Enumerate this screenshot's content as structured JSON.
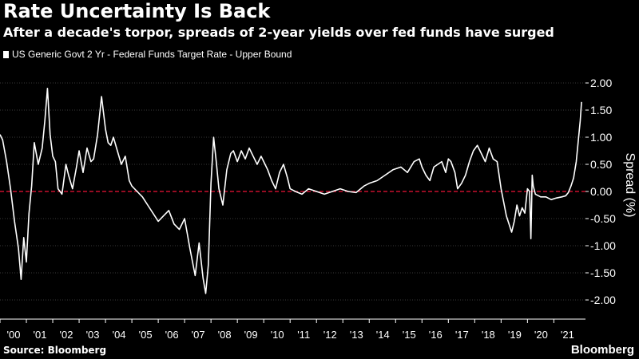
{
  "header": {
    "title": "Rate Uncertainty Is Back",
    "subtitle": "After a decade's torpor, spreads of 2-year yields over fed funds have surged"
  },
  "footer": {
    "source": "Source: Bloomberg",
    "logo": "Bloomberg"
  },
  "colors": {
    "background": "#000000",
    "line": "#ffffff",
    "zero_line": "#c8102e",
    "grid": "#3a3a3a"
  },
  "chart_data": {
    "type": "line",
    "title": "Rate Uncertainty Is Back",
    "subtitle": "After a decade's torpor, spreads of 2-year yields over fed funds have surged",
    "ylabel": "Spread (%)",
    "xlabel": "",
    "ylim": [
      -2.0,
      2.0
    ],
    "yticks": [
      "2.00",
      "1.50",
      "1.00",
      "0.50",
      "0.00",
      "-0.50",
      "-1.00",
      "-1.50",
      "-2.00"
    ],
    "ytick_values": [
      2.0,
      1.5,
      1.0,
      0.5,
      0.0,
      -0.5,
      -1.0,
      -1.5,
      -2.0
    ],
    "xlim": [
      2000.0,
      2022.2
    ],
    "xtick_labels": [
      "'00",
      "'01",
      "'02",
      "'03",
      "'04",
      "'05",
      "'06",
      "'07",
      "'08",
      "'09",
      "'10",
      "'11",
      "'12",
      "'13",
      "'14",
      "'15",
      "'16",
      "'17",
      "'18",
      "'19",
      "'20",
      "'21"
    ],
    "xtick_values": [
      2000,
      2001,
      2002,
      2003,
      2004,
      2005,
      2006,
      2007,
      2008,
      2009,
      2010,
      2011,
      2012,
      2013,
      2014,
      2015,
      2016,
      2017,
      2018,
      2019,
      2020,
      2021
    ],
    "grid": "horizontal-dotted",
    "axis_position": "right",
    "legend_position": "top-left",
    "reference_line": {
      "y": 0,
      "style": "dashed",
      "color": "#c8102e"
    },
    "series": [
      {
        "name": "US Generic Govt 2 Yr - Federal Funds Target Rate - Upper Bound",
        "x": [
          2000.0,
          2000.1,
          2000.25,
          2000.4,
          2000.55,
          2000.7,
          2000.8,
          2000.9,
          2001.0,
          2001.1,
          2001.2,
          2001.3,
          2001.45,
          2001.6,
          2001.7,
          2001.8,
          2001.9,
          2002.0,
          2002.1,
          2002.2,
          2002.35,
          2002.5,
          2002.6,
          2002.75,
          2002.9,
          2003.0,
          2003.15,
          2003.3,
          2003.45,
          2003.55,
          2003.7,
          2003.85,
          2004.0,
          2004.1,
          2004.2,
          2004.3,
          2004.45,
          2004.6,
          2004.75,
          2004.9,
          2005.0,
          2005.2,
          2005.4,
          2005.6,
          2005.8,
          2006.0,
          2006.2,
          2006.4,
          2006.6,
          2006.8,
          2007.0,
          2007.2,
          2007.4,
          2007.55,
          2007.7,
          2007.8,
          2007.9,
          2008.0,
          2008.1,
          2008.2,
          2008.3,
          2008.45,
          2008.6,
          2008.75,
          2008.85,
          2009.0,
          2009.15,
          2009.3,
          2009.45,
          2009.6,
          2009.75,
          2009.9,
          2010.0,
          2010.15,
          2010.3,
          2010.45,
          2010.6,
          2010.75,
          2010.9,
          2011.0,
          2011.2,
          2011.45,
          2011.7,
          2012.0,
          2012.3,
          2012.6,
          2012.9,
          2013.2,
          2013.5,
          2013.8,
          2014.0,
          2014.3,
          2014.6,
          2014.9,
          2015.2,
          2015.45,
          2015.7,
          2015.9,
          2016.0,
          2016.15,
          2016.3,
          2016.45,
          2016.6,
          2016.75,
          2016.9,
          2017.0,
          2017.1,
          2017.25,
          2017.35,
          2017.5,
          2017.65,
          2017.8,
          2017.95,
          2018.1,
          2018.25,
          2018.4,
          2018.55,
          2018.7,
          2018.85,
          2019.0,
          2019.1,
          2019.2,
          2019.3,
          2019.4,
          2019.5,
          2019.6,
          2019.7,
          2019.8,
          2019.9,
          2020.0,
          2020.08,
          2020.13,
          2020.18,
          2020.22,
          2020.3,
          2020.5,
          2020.7,
          2020.9,
          2021.1,
          2021.3,
          2021.45,
          2021.55,
          2021.65,
          2021.75,
          2021.85,
          2021.92,
          2022.0,
          2022.05
        ],
        "values": [
          1.05,
          0.95,
          0.55,
          0.05,
          -0.55,
          -1.05,
          -1.62,
          -0.85,
          -1.3,
          -0.4,
          0.1,
          0.9,
          0.5,
          0.8,
          1.3,
          1.9,
          1.05,
          0.65,
          0.55,
          0.05,
          -0.05,
          0.5,
          0.3,
          0.05,
          0.45,
          0.75,
          0.35,
          0.8,
          0.55,
          0.6,
          1.05,
          1.75,
          1.15,
          0.9,
          0.85,
          1.0,
          0.75,
          0.5,
          0.65,
          0.2,
          0.1,
          0.0,
          -0.1,
          -0.25,
          -0.4,
          -0.55,
          -0.45,
          -0.35,
          -0.6,
          -0.7,
          -0.5,
          -1.05,
          -1.55,
          -0.95,
          -1.6,
          -1.88,
          -1.35,
          0.15,
          1.0,
          0.55,
          0.05,
          -0.25,
          0.4,
          0.7,
          0.75,
          0.55,
          0.75,
          0.6,
          0.8,
          0.65,
          0.5,
          0.65,
          0.55,
          0.4,
          0.2,
          0.05,
          0.35,
          0.5,
          0.25,
          0.05,
          0.0,
          -0.05,
          0.05,
          0.0,
          -0.05,
          0.0,
          0.05,
          0.0,
          -0.02,
          0.1,
          0.15,
          0.2,
          0.3,
          0.4,
          0.45,
          0.35,
          0.55,
          0.6,
          0.45,
          0.3,
          0.2,
          0.45,
          0.5,
          0.55,
          0.35,
          0.6,
          0.55,
          0.35,
          0.05,
          0.15,
          0.3,
          0.55,
          0.75,
          0.85,
          0.7,
          0.55,
          0.8,
          0.6,
          0.55,
          0.05,
          -0.2,
          -0.45,
          -0.6,
          -0.75,
          -0.55,
          -0.25,
          -0.45,
          -0.3,
          -0.4,
          0.05,
          0.0,
          -0.87,
          0.3,
          0.1,
          -0.05,
          -0.1,
          -0.1,
          -0.15,
          -0.12,
          -0.1,
          -0.08,
          -0.02,
          0.1,
          0.25,
          0.55,
          0.9,
          1.3,
          1.65
        ]
      }
    ]
  }
}
